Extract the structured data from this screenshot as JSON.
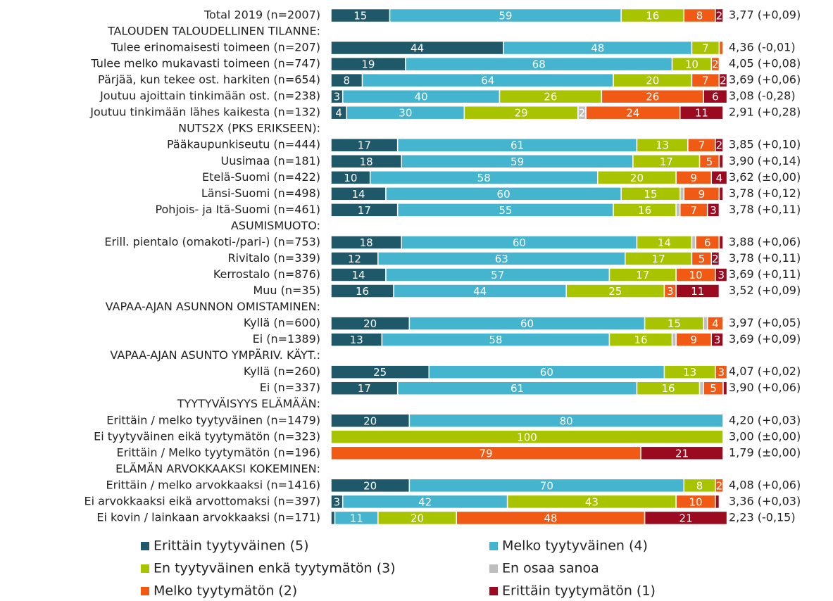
{
  "chart_data": {
    "type": "stacked-bar-horizontal",
    "categories": [
      "Total 2019 (n=2007)",
      "TALOUDEN TALOUDELLINEN TILANNE:",
      "Tulee erinomaisesti toimeen (n=207)",
      "Tulee melko mukavasti toimeen (n=747)",
      "Pärjää, kun tekee ost. harkiten (n=654)",
      "Joutuu ajoittain tinkimään ost. (n=238)",
      "Joutuu tinkimään lähes kaikesta (n=132)",
      "NUTS2X (PKS ERIKSEEN):",
      "Pääkaupunkiseutu (n=444)",
      "Uusimaa (n=181)",
      "Etelä-Suomi (n=422)",
      "Länsi-Suomi (n=498)",
      "Pohjois- ja Itä-Suomi (n=461)",
      "ASUMISMUOTO:",
      "Erill. pientalo (omakoti-/pari-) (n=753)",
      "Rivitalo (n=339)",
      "Kerrostalo (n=876)",
      "Muu (n=35)",
      "VAPAA-AJAN ASUNNON OMISTAMINEN:",
      "Kyllä (n=600)",
      "Ei (n=1389)",
      "VAPAA-AJAN ASUNTO YMPÄRIV. KÄYT.:",
      "Kyllä (n=260)",
      "Ei (n=337)",
      "TYYTYVÄISYYS ELÄMÄÄN:",
      "Erittäin / melko tyytyväinen (n=1479)",
      "Ei tyytyväinen eikä tyytymätön (n=323)",
      "Erittäin / Melko tyytymätön (n=196)",
      "ELÄMÄN ARVOKKAAKSI KOKEMINEN:",
      "Erittäin / melko arvokkaaksi (n=1416)",
      "Ei arvokkaaksi eikä arvottomaksi (n=397)",
      "Ei kovin / lainkaan arvokkaaksi (n=171)"
    ],
    "series": [
      {
        "name": "Erittäin tyytyväinen (5)",
        "color": "#1f5869",
        "values": [
          15,
          null,
          44,
          19,
          8,
          3,
          4,
          null,
          17,
          18,
          10,
          14,
          17,
          null,
          18,
          12,
          14,
          16,
          null,
          20,
          13,
          null,
          25,
          17,
          null,
          20,
          0,
          0,
          null,
          20,
          3,
          1
        ]
      },
      {
        "name": "Melko tyytyväinen (4)",
        "color": "#45b4cf",
        "values": [
          59,
          null,
          48,
          68,
          64,
          40,
          30,
          null,
          61,
          59,
          58,
          60,
          55,
          null,
          60,
          63,
          57,
          44,
          null,
          60,
          58,
          null,
          60,
          61,
          null,
          80,
          0,
          0,
          null,
          70,
          42,
          11
        ]
      },
      {
        "name": "En tyytyväinen enkä tyytymätön (3)",
        "color": "#a8c400",
        "values": [
          16,
          null,
          7,
          10,
          20,
          26,
          29,
          null,
          13,
          17,
          20,
          15,
          16,
          null,
          14,
          17,
          17,
          25,
          null,
          15,
          16,
          null,
          13,
          16,
          null,
          0,
          100,
          0,
          null,
          8,
          43,
          20
        ]
      },
      {
        "name": "En osaa sanoa",
        "color": "#bfbfbf",
        "values": [
          0,
          null,
          0,
          0,
          0,
          0,
          2,
          null,
          0,
          0,
          0,
          1,
          1,
          null,
          1,
          0,
          0,
          0,
          null,
          1,
          1,
          null,
          0,
          1,
          null,
          0,
          0,
          0,
          null,
          0,
          0,
          0
        ]
      },
      {
        "name": "Melko tyytymätön (2)",
        "color": "#f05a14",
        "values": [
          8,
          null,
          1,
          2,
          7,
          26,
          24,
          null,
          7,
          5,
          9,
          9,
          7,
          null,
          6,
          5,
          10,
          3,
          null,
          4,
          9,
          null,
          3,
          5,
          null,
          0,
          0,
          79,
          null,
          2,
          10,
          48
        ]
      },
      {
        "name": "Erittäin tyytymätön (1)",
        "color": "#9b0a1e",
        "values": [
          2,
          null,
          0,
          0,
          2,
          6,
          11,
          null,
          2,
          1,
          4,
          1,
          3,
          null,
          1,
          2,
          3,
          11,
          null,
          0,
          3,
          null,
          0,
          1,
          null,
          0,
          0,
          21,
          null,
          0,
          1,
          21
        ]
      }
    ],
    "annotations": [
      "3,77 (+0,09)",
      null,
      "4,36 (-0,01)",
      "4,05 (+0,08)",
      "3,69 (+0,06)",
      "3,08 (-0,28)",
      "2,91 (+0,28)",
      null,
      "3,85 (+0,10)",
      "3,90 (+0,14)",
      "3,62 (±0,00)",
      "3,78 (+0,12)",
      "3,78 (+0,11)",
      null,
      "3,88 (+0,06)",
      "3,78 (+0,11)",
      "3,69 (+0,11)",
      "3,52 (+0,09)",
      null,
      "3,97 (+0,05)",
      "3,69 (+0,09)",
      null,
      "4,07 (+0,02)",
      "3,90 (+0,06)",
      null,
      "4,20 (+0,03)",
      "3,00 (±0,00)",
      "1,79 (±0,00)",
      null,
      "4,08 (+0,06)",
      "3,36 (+0,03)",
      "2,23 (-0,15)"
    ],
    "xlim": [
      0,
      100
    ]
  }
}
